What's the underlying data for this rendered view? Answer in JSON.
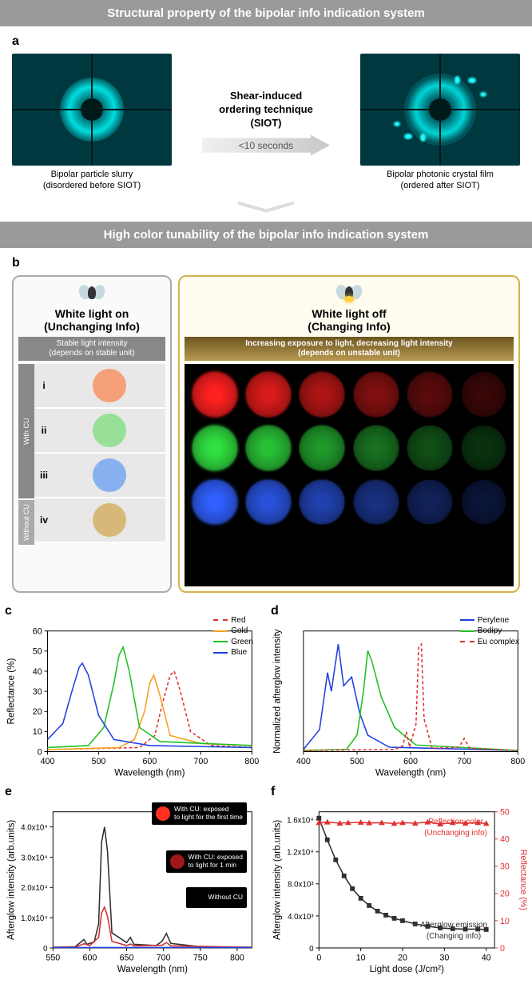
{
  "header1": "Structural property of the bipolar info indication system",
  "header2": "High color tunability of the bipolar info indication system",
  "panel_a": {
    "label": "a",
    "left_caption_l1": "Bipolar particle slurry",
    "left_caption_l2": "(disordered before SIOT)",
    "right_caption_l1": "Bipolar photonic crystal film",
    "right_caption_l2": "(ordered after SIOT)",
    "arrow_title_l1": "Shear-induced",
    "arrow_title_l2": "ordering technique",
    "arrow_title_l3": "(SIOT)",
    "arrow_text": "<10 seconds"
  },
  "panel_b": {
    "label": "b",
    "left_h_l1": "White light on",
    "left_h_l2": "(Unchanging Info)",
    "left_sub_l1": "Stable light intensity",
    "left_sub_l2": "(depends on stable unit)",
    "right_h_l1": "White light off",
    "right_h_l2": "(Changing Info)",
    "right_sub_l1": "Increasing exposure to light, decreasing light intensity",
    "right_sub_l2": "(depends on unstable unit)",
    "vtab_with": "With CU",
    "vtab_without": "Without CU",
    "nums": [
      "i",
      "ii",
      "iii",
      "iv"
    ],
    "left_colors": [
      "#f5a078",
      "#98e098",
      "#88b0f0",
      "#d8b878"
    ],
    "glow_rows": [
      {
        "base": "#ff2020",
        "alpha": [
          1,
          0.85,
          0.68,
          0.5,
          0.35,
          0.22
        ]
      },
      {
        "base": "#30e040",
        "alpha": [
          1,
          0.85,
          0.68,
          0.5,
          0.35,
          0.22
        ]
      },
      {
        "base": "#3060ff",
        "alpha": [
          1,
          0.85,
          0.68,
          0.5,
          0.35,
          0.22
        ]
      },
      {
        "base": "#000000",
        "alpha": [
          0,
          0,
          0,
          0,
          0,
          0
        ]
      }
    ]
  },
  "panel_c": {
    "label": "c",
    "xlabel": "Wavelength (nm)",
    "ylabel": "Reflectance (%)",
    "xlim": [
      400,
      800
    ],
    "xticks": [
      400,
      500,
      600,
      700,
      800
    ],
    "ylim": [
      0,
      60
    ],
    "yticks": [
      0,
      10,
      20,
      30,
      40,
      50,
      60
    ],
    "series": [
      {
        "name": "Red",
        "color": "#e03030",
        "dash": true,
        "pts": [
          [
            400,
            1
          ],
          [
            580,
            2
          ],
          [
            610,
            8
          ],
          [
            625,
            24
          ],
          [
            640,
            38
          ],
          [
            648,
            40
          ],
          [
            660,
            30
          ],
          [
            680,
            10
          ],
          [
            720,
            3
          ],
          [
            800,
            2
          ]
        ]
      },
      {
        "name": "Gold",
        "color": "#f5a020",
        "dash": false,
        "pts": [
          [
            400,
            1
          ],
          [
            540,
            2
          ],
          [
            570,
            6
          ],
          [
            590,
            20
          ],
          [
            600,
            34
          ],
          [
            608,
            38
          ],
          [
            620,
            28
          ],
          [
            640,
            8
          ],
          [
            700,
            4
          ],
          [
            800,
            3
          ]
        ]
      },
      {
        "name": "Green",
        "color": "#20c020",
        "dash": false,
        "pts": [
          [
            400,
            2
          ],
          [
            480,
            3
          ],
          [
            510,
            12
          ],
          [
            530,
            34
          ],
          [
            540,
            48
          ],
          [
            548,
            52
          ],
          [
            560,
            40
          ],
          [
            580,
            12
          ],
          [
            620,
            5
          ],
          [
            800,
            3
          ]
        ]
      },
      {
        "name": "Blue",
        "color": "#2040e0",
        "dash": false,
        "pts": [
          [
            400,
            6
          ],
          [
            430,
            14
          ],
          [
            450,
            32
          ],
          [
            462,
            42
          ],
          [
            468,
            44
          ],
          [
            480,
            38
          ],
          [
            500,
            18
          ],
          [
            530,
            6
          ],
          [
            600,
            3
          ],
          [
            800,
            2
          ]
        ]
      }
    ]
  },
  "panel_d": {
    "label": "d",
    "xlabel": "Wavelength (nm)",
    "ylabel": "Normalized afterglow intensity",
    "xlim": [
      400,
      800
    ],
    "xticks": [
      400,
      500,
      600,
      700,
      800
    ],
    "ylim": [
      0,
      1.1
    ],
    "yticks_show": false,
    "series": [
      {
        "name": "Perylene",
        "color": "#2040e0",
        "dash": false,
        "pts": [
          [
            400,
            0.02
          ],
          [
            430,
            0.2
          ],
          [
            445,
            0.72
          ],
          [
            452,
            0.55
          ],
          [
            465,
            0.98
          ],
          [
            475,
            0.6
          ],
          [
            490,
            0.68
          ],
          [
            505,
            0.35
          ],
          [
            520,
            0.15
          ],
          [
            560,
            0.04
          ],
          [
            800,
            0.01
          ]
        ]
      },
      {
        "name": "Bodipy",
        "color": "#20c020",
        "dash": false,
        "pts": [
          [
            400,
            0.01
          ],
          [
            480,
            0.02
          ],
          [
            500,
            0.15
          ],
          [
            512,
            0.55
          ],
          [
            520,
            0.92
          ],
          [
            528,
            0.82
          ],
          [
            545,
            0.5
          ],
          [
            570,
            0.22
          ],
          [
            610,
            0.06
          ],
          [
            800,
            0.01
          ]
        ]
      },
      {
        "name": "Eu complex",
        "color": "#e03030",
        "dash": true,
        "pts": [
          [
            400,
            0.01
          ],
          [
            570,
            0.02
          ],
          [
            585,
            0.05
          ],
          [
            592,
            0.18
          ],
          [
            598,
            0.04
          ],
          [
            610,
            0.25
          ],
          [
            615,
            0.95
          ],
          [
            620,
            0.98
          ],
          [
            625,
            0.3
          ],
          [
            640,
            0.03
          ],
          [
            690,
            0.04
          ],
          [
            700,
            0.12
          ],
          [
            710,
            0.03
          ],
          [
            800,
            0.01
          ]
        ]
      }
    ]
  },
  "panel_e": {
    "label": "e",
    "xlabel": "Wavelength (nm)",
    "ylabel": "Afterglow intensity (arb.units)",
    "xlim": [
      550,
      820
    ],
    "xticks": [
      550,
      600,
      650,
      700,
      750,
      800
    ],
    "ylim": [
      0,
      45000
    ],
    "ytick_labels": [
      "0",
      "1.0x10⁴",
      "2.0x10⁴",
      "3.0x10⁴",
      "4.0x10⁴"
    ],
    "ytick_vals": [
      0,
      10000,
      20000,
      30000,
      40000
    ],
    "series": [
      {
        "name": "first",
        "color": "#303030",
        "dash": false,
        "pts": [
          [
            550,
            200
          ],
          [
            580,
            400
          ],
          [
            592,
            2800
          ],
          [
            596,
            1200
          ],
          [
            606,
            2000
          ],
          [
            612,
            8000
          ],
          [
            616,
            35000
          ],
          [
            620,
            40000
          ],
          [
            624,
            32000
          ],
          [
            630,
            5000
          ],
          [
            650,
            1800
          ],
          [
            655,
            3500
          ],
          [
            660,
            1200
          ],
          [
            690,
            800
          ],
          [
            698,
            2200
          ],
          [
            704,
            4800
          ],
          [
            710,
            1500
          ],
          [
            750,
            400
          ],
          [
            820,
            200
          ]
        ]
      },
      {
        "name": "1min",
        "color": "#d03030",
        "dash": false,
        "pts": [
          [
            550,
            200
          ],
          [
            580,
            300
          ],
          [
            592,
            1400
          ],
          [
            600,
            800
          ],
          [
            612,
            3500
          ],
          [
            616,
            11500
          ],
          [
            620,
            13500
          ],
          [
            624,
            10500
          ],
          [
            630,
            2200
          ],
          [
            650,
            800
          ],
          [
            655,
            1300
          ],
          [
            660,
            700
          ],
          [
            698,
            900
          ],
          [
            704,
            1800
          ],
          [
            710,
            700
          ],
          [
            820,
            200
          ]
        ]
      },
      {
        "name": "without",
        "color": "#2040e0",
        "dash": false,
        "pts": [
          [
            550,
            150
          ],
          [
            820,
            150
          ]
        ]
      }
    ],
    "inset1_l1": "With CU: exposed",
    "inset1_l2": "to light for the first time",
    "inset1_color": "#ff3020",
    "inset2_l1": "With CU: exposed",
    "inset2_l2": "to light for 1 min",
    "inset2_color": "#a01818",
    "inset3": "Without CU",
    "inset3_color": "#000000"
  },
  "panel_f": {
    "label": "f",
    "xlabel": "Light dose (J/cm²)",
    "ylabel": "Afterglow intensity (arb.units)",
    "y2label": "Reflectance (%)",
    "xlim": [
      0,
      42
    ],
    "xticks": [
      0,
      10,
      20,
      30,
      40
    ],
    "ylim": [
      0,
      17000
    ],
    "ytick_labels": [
      "0",
      "4.0x10³",
      "8.0x10³",
      "1.2x10⁴",
      "1.6x10⁴"
    ],
    "ytick_vals": [
      0,
      4000,
      8000,
      12000,
      16000
    ],
    "y2lim": [
      0,
      50
    ],
    "y2ticks": [
      0,
      10,
      20,
      30,
      40,
      50
    ],
    "series_refl": {
      "color": "#e03030",
      "marker": "triangle",
      "pts": [
        [
          0,
          46
        ],
        [
          2,
          46.2
        ],
        [
          5,
          45.8
        ],
        [
          7,
          46
        ],
        [
          10,
          46.1
        ],
        [
          12,
          45.9
        ],
        [
          15,
          46
        ],
        [
          18,
          45.7
        ],
        [
          20,
          46
        ],
        [
          23,
          45.8
        ],
        [
          26,
          46.2
        ],
        [
          29,
          45.5
        ],
        [
          32,
          46
        ],
        [
          35,
          45.8
        ],
        [
          38,
          46
        ],
        [
          40,
          45.7
        ]
      ]
    },
    "series_afterglow": {
      "color": "#303030",
      "marker": "square",
      "pts": [
        [
          0,
          16200
        ],
        [
          2,
          13500
        ],
        [
          4,
          11000
        ],
        [
          6,
          9000
        ],
        [
          8,
          7400
        ],
        [
          10,
          6200
        ],
        [
          12,
          5300
        ],
        [
          14,
          4600
        ],
        [
          16,
          4100
        ],
        [
          18,
          3700
        ],
        [
          20,
          3400
        ],
        [
          23,
          3000
        ],
        [
          26,
          2700
        ],
        [
          29,
          2500
        ],
        [
          32,
          2400
        ],
        [
          35,
          2350
        ],
        [
          38,
          2350
        ],
        [
          40,
          2300
        ]
      ]
    },
    "ann_refl_l1": "Reflection color",
    "ann_refl_l2": "(Unchanging info)",
    "ann_glow_l1": "Afterglow emission",
    "ann_glow_l2": "(Changing info)"
  }
}
